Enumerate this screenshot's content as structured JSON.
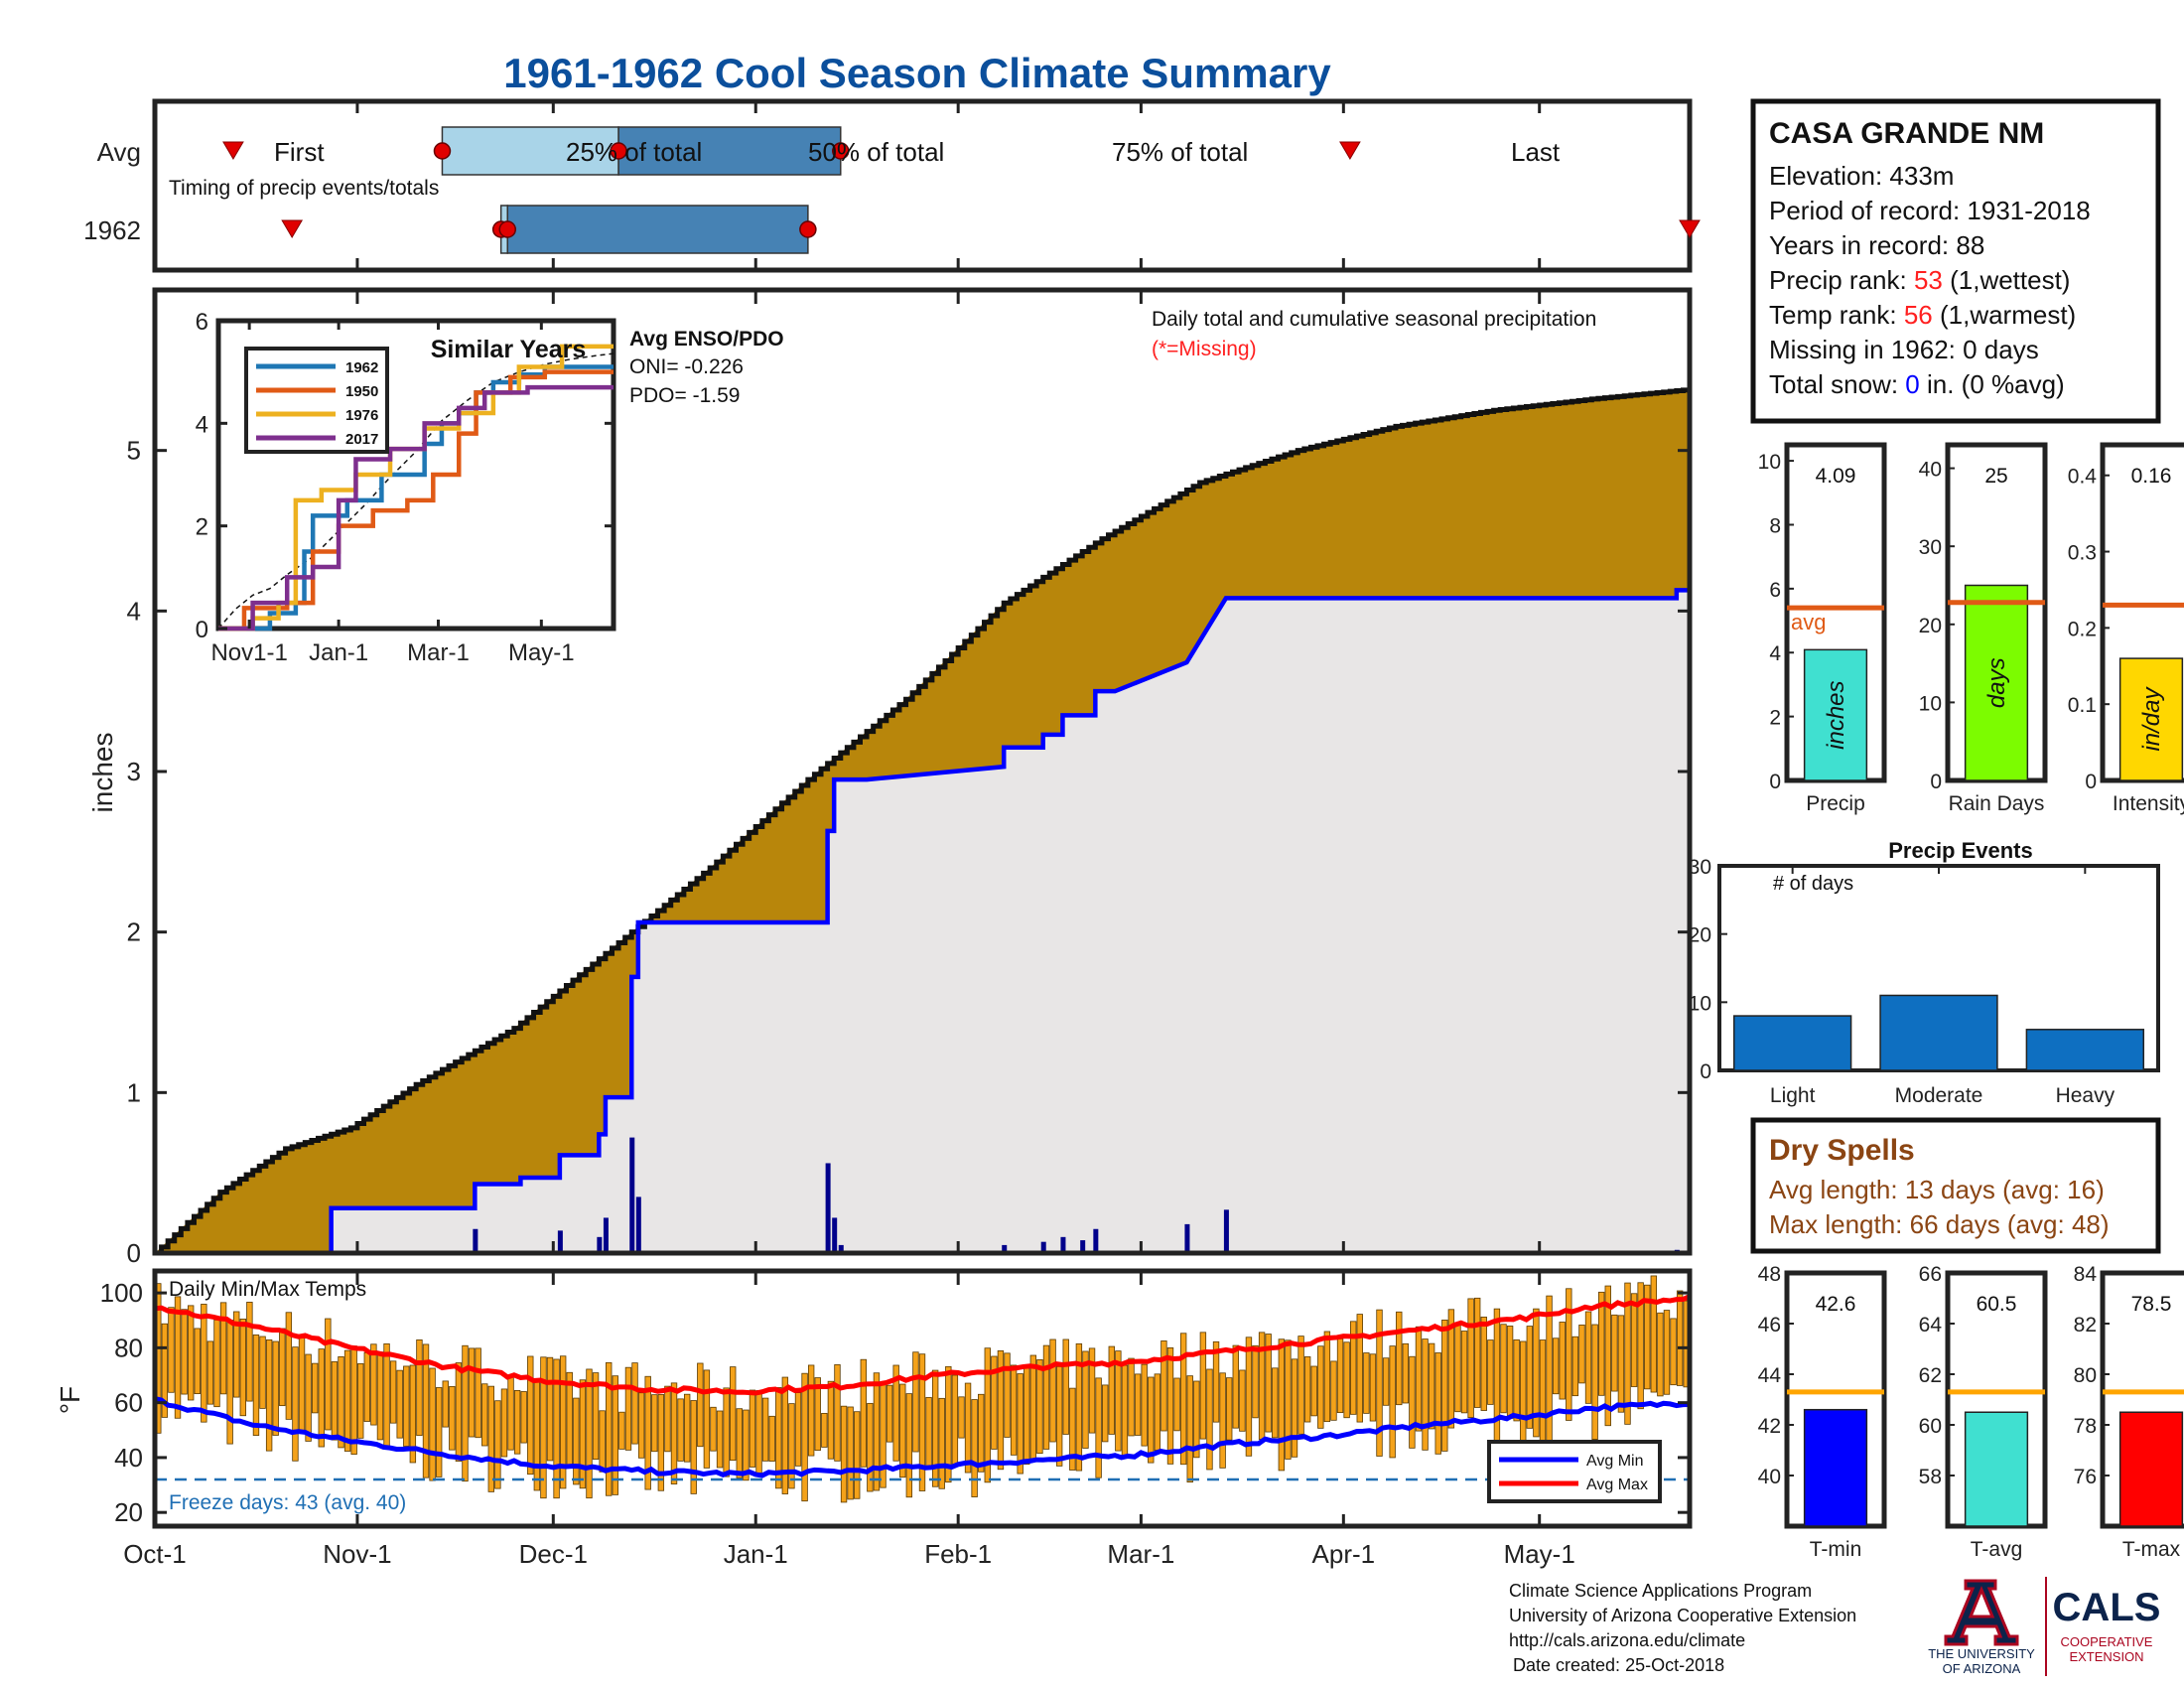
{
  "title": "1961-1962 Cool Season Climate Summary",
  "timing": {
    "row_labels": [
      "Avg",
      "1962"
    ],
    "first_label": "First",
    "last_label": "Last",
    "pct25_label": "25% of total",
    "pct50_label": "50% of total",
    "pct75_label": "75% of total",
    "caption": "Timing of precip events/totals"
  },
  "main": {
    "ylabel": "inches",
    "caption": "Daily total and cumulative seasonal precipitation",
    "missing_note": "(*=Missing)"
  },
  "inset": {
    "title": "Similar Years",
    "legend": [
      "1962",
      "1950",
      "1976",
      "2017"
    ],
    "enso_title": "Avg ENSO/PDO",
    "oni": "ONI= -0.226",
    "pdo": "PDO= -1.59",
    "x_ticks": [
      "Nov1-1",
      "Jan-1",
      "Mar-1",
      "May-1"
    ],
    "y_ticks": [
      "0",
      "2",
      "4",
      "6"
    ]
  },
  "temps": {
    "caption": "Daily Min/Max Temps",
    "ylabel": "°F",
    "freeze_note": "Freeze days: 43 (avg. 40)",
    "legend_min": "Avg Min",
    "legend_max": "Avg Max",
    "y_ticks": [
      "20",
      "40",
      "60",
      "80",
      "100"
    ]
  },
  "x_ticks": [
    "Oct-1",
    "Nov-1",
    "Dec-1",
    "Jan-1",
    "Feb-1",
    "Mar-1",
    "Apr-1",
    "May-1"
  ],
  "station": {
    "name": "CASA GRANDE NM",
    "elevation": "Elevation: 433m",
    "period": "Period of record: 1931-2018",
    "years": "Years in record: 88",
    "precip_rank_label": "Precip rank: ",
    "precip_rank_value": "53",
    "precip_rank_suffix": " (1,wettest)",
    "temp_rank_label": "Temp rank: ",
    "temp_rank_value": "56",
    "temp_rank_suffix": " (1,warmest)",
    "missing": "Missing in 1962: 0 days",
    "snow_label": "Total snow: ",
    "snow_value": "0",
    "snow_suffix": " in. (0 %avg)"
  },
  "mini_bars": [
    {
      "label": "Precip",
      "value_text": "4.09",
      "bar_text": "inches",
      "avg_text": "avg",
      "ticks": [
        "0",
        "2",
        "4",
        "6",
        "8",
        "10"
      ]
    },
    {
      "label": "Rain Days",
      "value_text": "25",
      "bar_text": "days",
      "ticks": [
        "0",
        "10",
        "20",
        "30",
        "40"
      ]
    },
    {
      "label": "Intensity",
      "value_text": "0.16",
      "bar_text": "in/day",
      "ticks": [
        "0",
        "0.1",
        "0.2",
        "0.3",
        "0.4"
      ]
    }
  ],
  "events": {
    "title": "Precip Events",
    "ylabel_inside": "# of days",
    "categories": [
      "Light",
      "Moderate",
      "Heavy"
    ],
    "y_ticks": [
      "0",
      "10",
      "20",
      "30"
    ]
  },
  "dry_spells": {
    "title": "Dry Spells",
    "avg_length": "Avg length: 13 days (avg: 16)",
    "max_length": "Max length: 66 days (avg: 48)"
  },
  "temp_bars": [
    {
      "label": "T-min",
      "value_text": "42.6",
      "ticks": [
        "40",
        "42",
        "44",
        "46",
        "48"
      ]
    },
    {
      "label": "T-avg",
      "value_text": "60.5",
      "ticks": [
        "58",
        "60",
        "62",
        "64",
        "66"
      ]
    },
    {
      "label": "T-max",
      "value_text": "78.5",
      "ticks": [
        "76",
        "78",
        "80",
        "82",
        "84"
      ]
    }
  ],
  "footer": {
    "line1": "Climate Science Applications Program",
    "line2": "University of Arizona Cooperative Extension",
    "line3": "http://cals.arizona.edu/climate",
    "line4": "Date created: 25-Oct-2018",
    "ua_line1": "THE UNIVERSITY",
    "ua_line2": "OF ARIZONA",
    "cals": "CALS",
    "cals_line1": "COOPERATIVE",
    "cals_line2": "EXTENSION"
  },
  "colors": {
    "title": "#0b4f9c",
    "brown": "#b8860b",
    "blue_line": "#0000ff",
    "grey_fill": "#e8e6e6",
    "green": "#2e8b2e",
    "rank_red": "#ff2020",
    "dry_brown": "#8b4513",
    "orange_bar": "#f4a21a",
    "avg_red": "#ff0000",
    "timing_light": "#a9d4e8",
    "timing_dark": "#4682b4"
  },
  "chart_data": [
    {
      "type": "line",
      "name": "timing",
      "x_range_days": [
        0,
        235
      ],
      "avg": {
        "first": 12,
        "pct25": 44,
        "pct50": 71,
        "pct75": 105,
        "last": 183
      },
      "y1962": {
        "first": 21,
        "pct25": 53,
        "pct50": 54,
        "pct75": 100,
        "last": 235
      }
    },
    {
      "type": "area",
      "name": "cumulative",
      "ylim": [
        0,
        6
      ],
      "avg_cumulative_x": [
        0,
        10,
        20,
        30,
        40,
        55,
        70,
        85,
        100,
        115,
        130,
        145,
        160,
        175,
        190,
        205,
        220,
        235
      ],
      "avg_cumulative_y": [
        0,
        0.38,
        0.65,
        0.78,
        1.05,
        1.4,
        1.9,
        2.4,
        2.95,
        3.45,
        4.05,
        4.45,
        4.8,
        5.0,
        5.15,
        5.25,
        5.32,
        5.38
      ],
      "season_cumulative_x": [
        0,
        27,
        27,
        49,
        49,
        56,
        56,
        62,
        62,
        68,
        68,
        69,
        69,
        73,
        73,
        74,
        74,
        103,
        103,
        104,
        104,
        109,
        109,
        130,
        130,
        136,
        136,
        139,
        139,
        144,
        144,
        147,
        147,
        158,
        158,
        164,
        164,
        233,
        233,
        235
      ],
      "season_cumulative_y": [
        0,
        0,
        0.28,
        0.28,
        0.43,
        0.43,
        0.47,
        0.47,
        0.61,
        0.61,
        0.74,
        0.74,
        0.97,
        0.97,
        1.72,
        1.72,
        2.06,
        2.06,
        2.63,
        2.63,
        2.95,
        2.95,
        2.95,
        3.03,
        3.15,
        3.15,
        3.23,
        3.23,
        3.35,
        3.35,
        3.5,
        3.5,
        3.5,
        3.68,
        3.68,
        4.08,
        4.08,
        4.08,
        4.13,
        4.13
      ],
      "daily_x": [
        49,
        62,
        68,
        69,
        73,
        74,
        103,
        104,
        105,
        130,
        136,
        139,
        142,
        144,
        158,
        164,
        233
      ],
      "daily_y": [
        0.15,
        0.14,
        0.1,
        0.22,
        0.72,
        0.35,
        0.56,
        0.22,
        0.05,
        0.05,
        0.07,
        0.1,
        0.08,
        0.15,
        0.18,
        0.27,
        0.02
      ]
    },
    {
      "type": "line",
      "name": "similar_years",
      "ylim": [
        0,
        6
      ],
      "series": [
        {
          "name": "1962",
          "x": [
            0,
            25,
            30,
            45,
            50,
            55,
            75,
            95,
            120,
            130,
            140,
            150,
            160,
            175,
            190,
            230
          ],
          "y": [
            0,
            0,
            0.3,
            0.5,
            1.5,
            2.2,
            2.5,
            3.0,
            3.6,
            4.0,
            4.2,
            4.6,
            4.8,
            4.95,
            5.1,
            5.1
          ]
        },
        {
          "name": "1950",
          "x": [
            0,
            15,
            40,
            55,
            70,
            90,
            110,
            125,
            140,
            150,
            170,
            190,
            230
          ],
          "y": [
            0,
            0.4,
            0.5,
            1.5,
            2.0,
            2.3,
            2.5,
            3.0,
            3.8,
            4.6,
            4.9,
            5.0,
            5.0
          ]
        },
        {
          "name": "1976",
          "x": [
            0,
            20,
            35,
            45,
            60,
            80,
            100,
            120,
            140,
            160,
            175,
            200,
            230
          ],
          "y": [
            0,
            0.2,
            0.5,
            2.5,
            2.7,
            3.0,
            3.5,
            3.9,
            4.2,
            4.6,
            5.1,
            5.5,
            5.5
          ]
        },
        {
          "name": "2017",
          "x": [
            0,
            20,
            40,
            55,
            70,
            80,
            100,
            120,
            140,
            155,
            180,
            230
          ],
          "y": [
            0,
            0.5,
            1.0,
            1.2,
            2.5,
            3.3,
            3.5,
            4.0,
            4.3,
            4.6,
            4.7,
            4.7
          ]
        }
      ]
    },
    {
      "type": "bar",
      "name": "precip_events",
      "categories": [
        "Light",
        "Moderate",
        "Heavy"
      ],
      "values": [
        8,
        11,
        6
      ],
      "ylim": [
        0,
        30
      ]
    },
    {
      "type": "bar",
      "name": "season_totals",
      "categories": [
        "Precip",
        "Rain Days",
        "Intensity"
      ],
      "values": [
        4.09,
        25,
        0.16
      ],
      "averages": [
        5.4,
        22.8,
        0.23
      ],
      "ylims": [
        [
          0,
          10.5
        ],
        [
          0,
          43
        ],
        [
          0,
          0.44
        ]
      ]
    },
    {
      "type": "bar",
      "name": "temp_means",
      "categories": [
        "T-min",
        "T-avg",
        "T-max"
      ],
      "values": [
        42.6,
        60.5,
        78.5
      ],
      "averages": [
        43.3,
        61.3,
        79.3
      ],
      "ylims": [
        [
          38,
          48
        ],
        [
          56,
          66
        ],
        [
          74,
          84
        ]
      ]
    },
    {
      "type": "bar",
      "name": "daily_temps",
      "ylim": [
        15,
        108
      ],
      "freeze_line": 32,
      "avg_min_x": [
        0,
        15,
        30,
        45,
        60,
        75,
        90,
        105,
        120,
        135,
        150,
        165,
        180,
        195,
        210,
        220,
        235
      ],
      "avg_min_y": [
        61,
        52,
        46,
        41,
        37,
        35,
        34,
        35,
        37,
        39,
        41,
        45,
        48,
        52,
        55,
        58,
        60
      ],
      "avg_max_x": [
        0,
        15,
        30,
        45,
        60,
        75,
        90,
        105,
        120,
        135,
        150,
        165,
        180,
        195,
        210,
        220,
        235
      ],
      "avg_max_y": [
        95,
        88,
        80,
        73,
        68,
        65,
        64,
        66,
        70,
        73,
        75,
        79,
        83,
        87,
        91,
        95,
        98
      ]
    }
  ]
}
